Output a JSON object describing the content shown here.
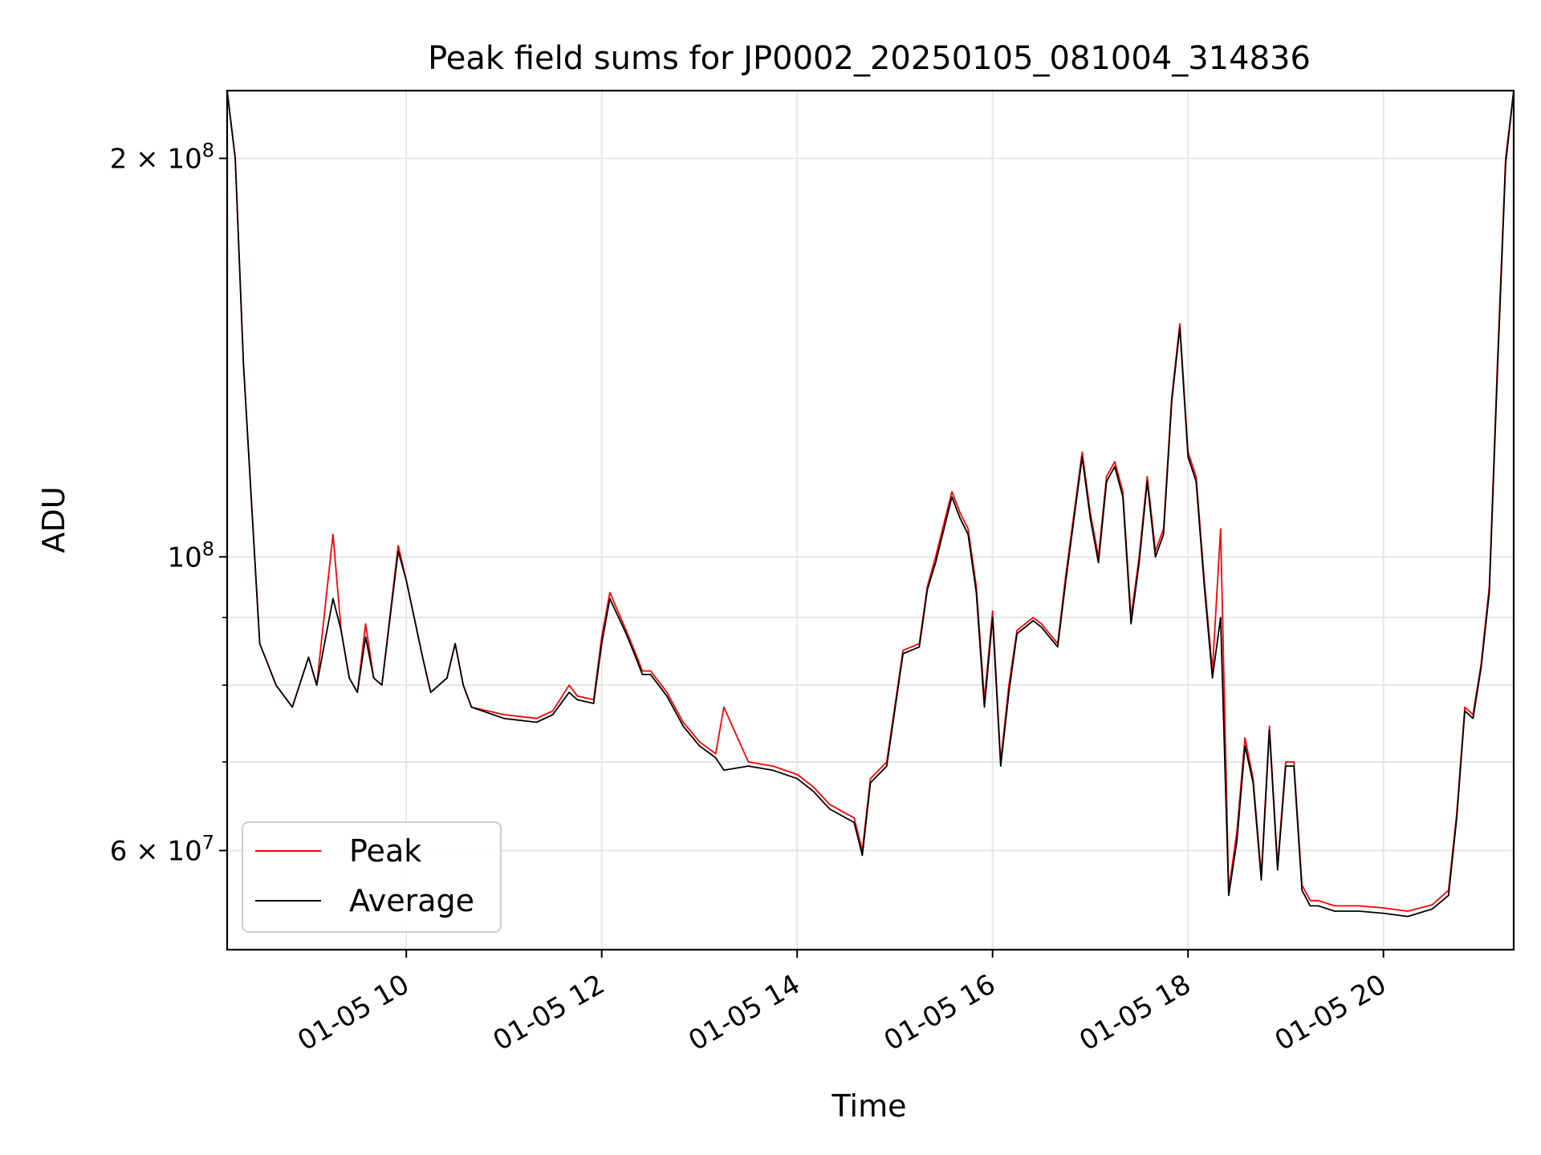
{
  "chart_data": {
    "type": "line",
    "title": "Peak field sums for JP0002_20250105_081004_314836",
    "xlabel": "Time",
    "ylabel": "ADU",
    "yscale": "log",
    "grid": true,
    "legend_placement": "lower-left",
    "xlim": [
      "2025-01-05 08:10",
      "2025-01-05 21:20"
    ],
    "ylim": [
      50500000,
      225000000
    ],
    "x_ticks": [
      {
        "x": "2025-01-05 10:00",
        "label": "01-05 10"
      },
      {
        "x": "2025-01-05 12:00",
        "label": "01-05 12"
      },
      {
        "x": "2025-01-05 14:00",
        "label": "01-05 14"
      },
      {
        "x": "2025-01-05 16:00",
        "label": "01-05 16"
      },
      {
        "x": "2025-01-05 18:00",
        "label": "01-05 18"
      },
      {
        "x": "2025-01-05 20:00",
        "label": "01-05 20"
      }
    ],
    "y_major_ticks": [
      {
        "y": 200000000,
        "base": "2",
        "times": "×",
        "exp_base": "10",
        "exp": "8"
      },
      {
        "y": 100000000,
        "base": "",
        "times": "",
        "exp_base": "10",
        "exp": "8"
      },
      {
        "y": 60000000,
        "base": "6",
        "times": "×",
        "exp_base": "10",
        "exp": "7"
      }
    ],
    "y_minor_gridlines": [
      70000000,
      80000000,
      90000000
    ],
    "series": [
      {
        "name": "Peak",
        "color": "#ff0000",
        "x": [
          "2025-01-05 08:10",
          "2025-01-05 08:15",
          "2025-01-05 08:20",
          "2025-01-05 08:30",
          "2025-01-05 08:35",
          "2025-01-05 08:40",
          "2025-01-05 08:45",
          "2025-01-05 08:50",
          "2025-01-05 09:00",
          "2025-01-05 09:05",
          "2025-01-05 09:15",
          "2025-01-05 09:20",
          "2025-01-05 09:25",
          "2025-01-05 09:30",
          "2025-01-05 09:35",
          "2025-01-05 09:40",
          "2025-01-05 09:45",
          "2025-01-05 09:55",
          "2025-01-05 10:00",
          "2025-01-05 10:10",
          "2025-01-05 10:15",
          "2025-01-05 10:25",
          "2025-01-05 10:30",
          "2025-01-05 10:35",
          "2025-01-05 10:40",
          "2025-01-05 11:00",
          "2025-01-05 11:20",
          "2025-01-05 11:30",
          "2025-01-05 11:40",
          "2025-01-05 11:45",
          "2025-01-05 11:55",
          "2025-01-05 12:00",
          "2025-01-05 12:05",
          "2025-01-05 12:15",
          "2025-01-05 12:20",
          "2025-01-05 12:25",
          "2025-01-05 12:30",
          "2025-01-05 12:40",
          "2025-01-05 12:50",
          "2025-01-05 13:00",
          "2025-01-05 13:10",
          "2025-01-05 13:15",
          "2025-01-05 13:30",
          "2025-01-05 13:45",
          "2025-01-05 14:00",
          "2025-01-05 14:10",
          "2025-01-05 14:20",
          "2025-01-05 14:35",
          "2025-01-05 14:40",
          "2025-01-05 14:45",
          "2025-01-05 14:55",
          "2025-01-05 15:05",
          "2025-01-05 15:15",
          "2025-01-05 15:20",
          "2025-01-05 15:25",
          "2025-01-05 15:35",
          "2025-01-05 15:40",
          "2025-01-05 15:45",
          "2025-01-05 15:50",
          "2025-01-05 15:55",
          "2025-01-05 16:00",
          "2025-01-05 16:05",
          "2025-01-05 16:10",
          "2025-01-05 16:15",
          "2025-01-05 16:25",
          "2025-01-05 16:30",
          "2025-01-05 16:40",
          "2025-01-05 16:45",
          "2025-01-05 16:55",
          "2025-01-05 17:00",
          "2025-01-05 17:05",
          "2025-01-05 17:10",
          "2025-01-05 17:15",
          "2025-01-05 17:20",
          "2025-01-05 17:25",
          "2025-01-05 17:30",
          "2025-01-05 17:35",
          "2025-01-05 17:40",
          "2025-01-05 17:45",
          "2025-01-05 17:50",
          "2025-01-05 17:55",
          "2025-01-05 18:00",
          "2025-01-05 18:05",
          "2025-01-05 18:10",
          "2025-01-05 18:15",
          "2025-01-05 18:20",
          "2025-01-05 18:25",
          "2025-01-05 18:30",
          "2025-01-05 18:35",
          "2025-01-05 18:40",
          "2025-01-05 18:45",
          "2025-01-05 18:50",
          "2025-01-05 18:55",
          "2025-01-05 19:00",
          "2025-01-05 19:05",
          "2025-01-05 19:10",
          "2025-01-05 19:15",
          "2025-01-05 19:20",
          "2025-01-05 19:30",
          "2025-01-05 19:45",
          "2025-01-05 20:00",
          "2025-01-05 20:15",
          "2025-01-05 20:30",
          "2025-01-05 20:40",
          "2025-01-05 20:45",
          "2025-01-05 20:50",
          "2025-01-05 20:55",
          "2025-01-05 21:00",
          "2025-01-05 21:05",
          "2025-01-05 21:10",
          "2025-01-05 21:15",
          "2025-01-05 21:20"
        ],
        "y": [
          225000000,
          200000000,
          140000000,
          86000000,
          83000000,
          80000000,
          78500000,
          77000000,
          84000000,
          80000000,
          104000000,
          88000000,
          81000000,
          79000000,
          89000000,
          81000000,
          80000000,
          102000000,
          96000000,
          84000000,
          79000000,
          81000000,
          86000000,
          80000000,
          77000000,
          76000000,
          75500000,
          76500000,
          80000000,
          78500000,
          78000000,
          87000000,
          94000000,
          88000000,
          85000000,
          82000000,
          82000000,
          79000000,
          75000000,
          72500000,
          71000000,
          77000000,
          70000000,
          69500000,
          68500000,
          67000000,
          65000000,
          63500000,
          60000000,
          68000000,
          70000000,
          85000000,
          86000000,
          95000000,
          100000000,
          112000000,
          108000000,
          105000000,
          95000000,
          78000000,
          91000000,
          70000000,
          80000000,
          88000000,
          90000000,
          89000000,
          86000000,
          97000000,
          120000000,
          108000000,
          100000000,
          115000000,
          118000000,
          112000000,
          90000000,
          100000000,
          115000000,
          101000000,
          105000000,
          132000000,
          150000000,
          120000000,
          115000000,
          96000000,
          82000000,
          105000000,
          56000000,
          62000000,
          73000000,
          68000000,
          57500000,
          74500000,
          58500000,
          70000000,
          70000000,
          56500000,
          55000000,
          55000000,
          54500000,
          54500000,
          54300000,
          54000000,
          54600000,
          56000000,
          64000000,
          77000000,
          76000000,
          83000000,
          95000000,
          140000000,
          200000000,
          225000000
        ]
      },
      {
        "name": "Average",
        "color": "#000000",
        "x": [
          "2025-01-05 08:10",
          "2025-01-05 08:15",
          "2025-01-05 08:20",
          "2025-01-05 08:30",
          "2025-01-05 08:35",
          "2025-01-05 08:40",
          "2025-01-05 08:45",
          "2025-01-05 08:50",
          "2025-01-05 09:00",
          "2025-01-05 09:05",
          "2025-01-05 09:15",
          "2025-01-05 09:20",
          "2025-01-05 09:25",
          "2025-01-05 09:30",
          "2025-01-05 09:35",
          "2025-01-05 09:40",
          "2025-01-05 09:45",
          "2025-01-05 09:55",
          "2025-01-05 10:00",
          "2025-01-05 10:10",
          "2025-01-05 10:15",
          "2025-01-05 10:25",
          "2025-01-05 10:30",
          "2025-01-05 10:35",
          "2025-01-05 10:40",
          "2025-01-05 11:00",
          "2025-01-05 11:20",
          "2025-01-05 11:30",
          "2025-01-05 11:40",
          "2025-01-05 11:45",
          "2025-01-05 11:55",
          "2025-01-05 12:00",
          "2025-01-05 12:05",
          "2025-01-05 12:15",
          "2025-01-05 12:20",
          "2025-01-05 12:25",
          "2025-01-05 12:30",
          "2025-01-05 12:40",
          "2025-01-05 12:50",
          "2025-01-05 13:00",
          "2025-01-05 13:10",
          "2025-01-05 13:15",
          "2025-01-05 13:30",
          "2025-01-05 13:45",
          "2025-01-05 14:00",
          "2025-01-05 14:10",
          "2025-01-05 14:20",
          "2025-01-05 14:35",
          "2025-01-05 14:40",
          "2025-01-05 14:45",
          "2025-01-05 14:55",
          "2025-01-05 15:05",
          "2025-01-05 15:15",
          "2025-01-05 15:20",
          "2025-01-05 15:25",
          "2025-01-05 15:35",
          "2025-01-05 15:40",
          "2025-01-05 15:45",
          "2025-01-05 15:50",
          "2025-01-05 15:55",
          "2025-01-05 16:00",
          "2025-01-05 16:05",
          "2025-01-05 16:10",
          "2025-01-05 16:15",
          "2025-01-05 16:25",
          "2025-01-05 16:30",
          "2025-01-05 16:40",
          "2025-01-05 16:45",
          "2025-01-05 16:55",
          "2025-01-05 17:00",
          "2025-01-05 17:05",
          "2025-01-05 17:10",
          "2025-01-05 17:15",
          "2025-01-05 17:20",
          "2025-01-05 17:25",
          "2025-01-05 17:30",
          "2025-01-05 17:35",
          "2025-01-05 17:40",
          "2025-01-05 17:45",
          "2025-01-05 17:50",
          "2025-01-05 17:55",
          "2025-01-05 18:00",
          "2025-01-05 18:05",
          "2025-01-05 18:10",
          "2025-01-05 18:15",
          "2025-01-05 18:20",
          "2025-01-05 18:25",
          "2025-01-05 18:30",
          "2025-01-05 18:35",
          "2025-01-05 18:40",
          "2025-01-05 18:45",
          "2025-01-05 18:50",
          "2025-01-05 18:55",
          "2025-01-05 19:00",
          "2025-01-05 19:05",
          "2025-01-05 19:10",
          "2025-01-05 19:15",
          "2025-01-05 19:20",
          "2025-01-05 19:30",
          "2025-01-05 19:45",
          "2025-01-05 20:00",
          "2025-01-05 20:15",
          "2025-01-05 20:30",
          "2025-01-05 20:40",
          "2025-01-05 20:45",
          "2025-01-05 20:50",
          "2025-01-05 20:55",
          "2025-01-05 21:00",
          "2025-01-05 21:05",
          "2025-01-05 21:10",
          "2025-01-05 21:15",
          "2025-01-05 21:20"
        ],
        "y": [
          225000000,
          200000000,
          140000000,
          86000000,
          83000000,
          80000000,
          78500000,
          77000000,
          84000000,
          80000000,
          93000000,
          88000000,
          81000000,
          79000000,
          87000000,
          81000000,
          80000000,
          101000000,
          96000000,
          84000000,
          79000000,
          81000000,
          86000000,
          80000000,
          77000000,
          75500000,
          75000000,
          76000000,
          79000000,
          78000000,
          77500000,
          86000000,
          93000000,
          87500000,
          84500000,
          81500000,
          81500000,
          78500000,
          74500000,
          72000000,
          70500000,
          69000000,
          69500000,
          69000000,
          68000000,
          66500000,
          64500000,
          63000000,
          59500000,
          67500000,
          69500000,
          84500000,
          85500000,
          94500000,
          99000000,
          111000000,
          107000000,
          104000000,
          94000000,
          77000000,
          90000000,
          69500000,
          79000000,
          87500000,
          89500000,
          88500000,
          85500000,
          96000000,
          119000000,
          107000000,
          99000000,
          114000000,
          117000000,
          111000000,
          89000000,
          99000000,
          114000000,
          100000000,
          104000000,
          131000000,
          149000000,
          119000000,
          114000000,
          95000000,
          81000000,
          90000000,
          55500000,
          61000000,
          72000000,
          67500000,
          57000000,
          74000000,
          58000000,
          69500000,
          69500000,
          56000000,
          54500000,
          54500000,
          54000000,
          54000000,
          53800000,
          53500000,
          54200000,
          55500000,
          63500000,
          76500000,
          75500000,
          82500000,
          94000000,
          138000000,
          198000000,
          225000000
        ]
      }
    ]
  }
}
